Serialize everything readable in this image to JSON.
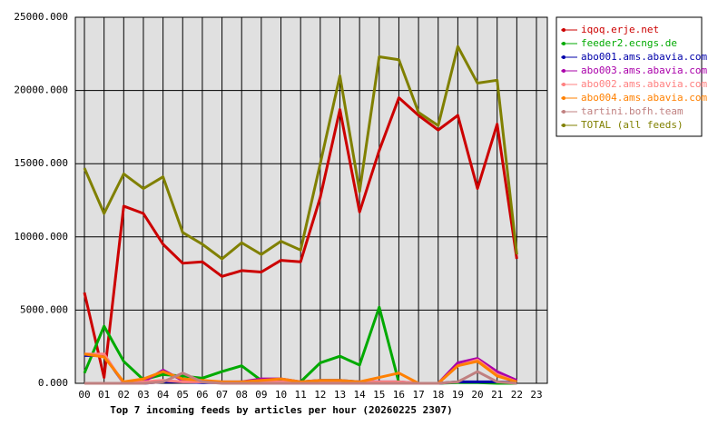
{
  "chart_data": {
    "type": "line",
    "title": "Top 7 incoming feeds by articles per hour (20260225 2307)",
    "categories": [
      "00",
      "01",
      "02",
      "03",
      "04",
      "05",
      "06",
      "07",
      "08",
      "09",
      "10",
      "11",
      "12",
      "13",
      "14",
      "15",
      "16",
      "17",
      "18",
      "19",
      "20",
      "21",
      "22",
      "23"
    ],
    "ylim": [
      0,
      25000
    ],
    "yticks": [
      {
        "value": 0,
        "label": "0.000"
      },
      {
        "value": 5000,
        "label": "5000.000"
      },
      {
        "value": 10000,
        "label": "10000.000"
      },
      {
        "value": 15000,
        "label": "15000.000"
      },
      {
        "value": 20000,
        "label": "20000.000"
      },
      {
        "value": 25000,
        "label": "25000.000"
      }
    ],
    "grid": true,
    "legend": "right",
    "series": [
      {
        "name": "iqoq.erje.net",
        "color": "#cc0000",
        "values": [
          6200,
          400,
          12100,
          11600,
          9500,
          8200,
          8300,
          7300,
          7700,
          7600,
          8400,
          8300,
          12700,
          18700,
          11700,
          15900,
          19500,
          18300,
          17300,
          18300,
          13300,
          17700,
          8500,
          null
        ]
      },
      {
        "name": "feeder2.ecngs.de",
        "color": "#00aa00",
        "values": [
          700,
          3900,
          1500,
          250,
          600,
          500,
          350,
          800,
          1200,
          200,
          200,
          100,
          1400,
          1850,
          1250,
          5200,
          50,
          0,
          0,
          50,
          50,
          0,
          0,
          null
        ]
      },
      {
        "name": "abo001.ams.abavia.com",
        "color": "#0000aa",
        "values": [
          1900,
          1900,
          0,
          0,
          100,
          100,
          50,
          50,
          100,
          100,
          100,
          100,
          200,
          200,
          100,
          100,
          50,
          0,
          0,
          100,
          100,
          100,
          50,
          null
        ]
      },
      {
        "name": "abo003.ams.abavia.com",
        "color": "#aa00aa",
        "values": [
          0,
          0,
          0,
          100,
          900,
          200,
          100,
          100,
          100,
          300,
          300,
          100,
          100,
          100,
          100,
          100,
          100,
          0,
          0,
          1400,
          1700,
          800,
          200,
          null
        ]
      },
      {
        "name": "abo002.ams.abavia.com",
        "color": "#ff8080",
        "values": [
          2000,
          2000,
          0,
          100,
          200,
          100,
          100,
          50,
          50,
          100,
          100,
          50,
          100,
          100,
          100,
          100,
          100,
          0,
          0,
          1200,
          1600,
          600,
          100,
          null
        ]
      },
      {
        "name": "abo004.ams.abavia.com",
        "color": "#ff8000",
        "values": [
          2000,
          1800,
          100,
          300,
          800,
          300,
          200,
          100,
          100,
          200,
          300,
          100,
          200,
          200,
          100,
          400,
          700,
          0,
          0,
          1200,
          1500,
          500,
          100,
          null
        ]
      },
      {
        "name": "tartini.bofh.team",
        "color": "#c08080",
        "values": [
          0,
          0,
          0,
          0,
          100,
          700,
          100,
          0,
          0,
          0,
          0,
          0,
          0,
          0,
          0,
          0,
          0,
          0,
          0,
          100,
          800,
          100,
          0,
          null
        ]
      },
      {
        "name": "TOTAL (all feeds)",
        "color": "#808000",
        "values": [
          14700,
          11600,
          14300,
          13300,
          14100,
          10300,
          9500,
          8500,
          9600,
          8800,
          9700,
          9100,
          15000,
          21000,
          13100,
          22300,
          22100,
          18500,
          17600,
          23000,
          20500,
          20700,
          8800,
          null
        ]
      }
    ]
  }
}
